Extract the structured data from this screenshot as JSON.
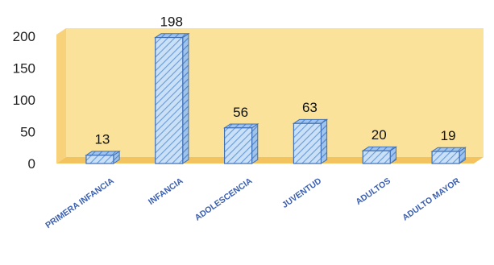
{
  "chart_data": {
    "type": "bar",
    "style": "3d-clustered-column",
    "categories": [
      "PRIMERA INFANCIA",
      "INFANCIA",
      "ADOLESCENCIA",
      "JUVENTUD",
      "ADULTOS",
      "ADULTO MAYOR"
    ],
    "values": [
      13,
      198,
      56,
      63,
      20,
      19
    ],
    "yticks": [
      "0",
      "50",
      "100",
      "150",
      "200"
    ],
    "ylim": [
      0,
      200
    ],
    "grid": false,
    "legend": "none",
    "data_labels": true,
    "colors": {
      "bar_fill": "#c9e0f7",
      "bar_hatch": "#6a9bd6",
      "bar_edge": "#3f6fb5",
      "back_wall": "#fbe29a",
      "side_wall": "#f7d27a",
      "floor": "#f2c35f",
      "category_text": "#3a5fb0"
    }
  }
}
